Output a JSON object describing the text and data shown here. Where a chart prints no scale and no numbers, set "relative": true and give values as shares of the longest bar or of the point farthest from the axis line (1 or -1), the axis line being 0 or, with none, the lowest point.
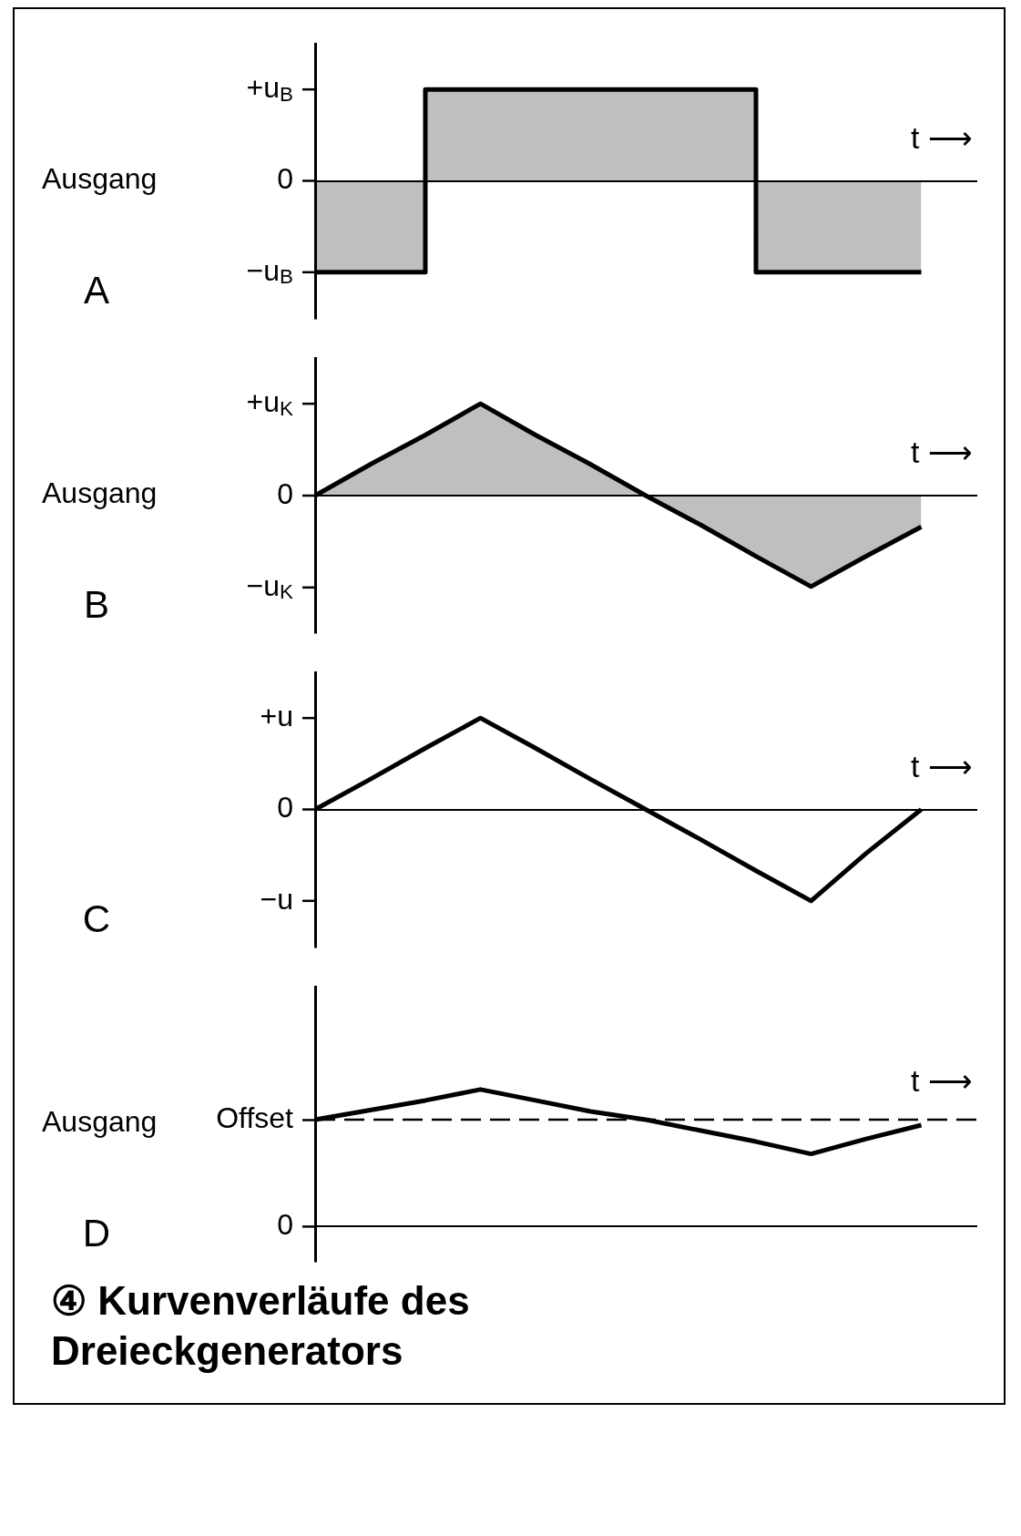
{
  "chart_data": [
    {
      "type": "step",
      "relative": true,
      "ylabel": "Ausgang",
      "xlabel": "t ⟶",
      "tick_labels": false,
      "annotations": [
        "A",
        "+u$_{B}$",
        "0",
        "−u$_{B}$"
      ],
      "categories": [
        null,
        null,
        null,
        null,
        null,
        null,
        null,
        null,
        null,
        null,
        null,
        null,
        null
      ],
      "series": [
        {
          "color": "#000000",
          "values": [
            -1,
            -1,
            -1,
            1,
            1,
            1,
            1,
            1,
            1,
            -1,
            -1,
            -1,
            null
          ]
        }
      ]
    },
    {
      "type": "area",
      "relative": true,
      "ylabel": "Ausgang",
      "xlabel": "t ⟶",
      "tick_labels": false,
      "annotations": [
        "B",
        "+u$_{K}$",
        "0",
        "−u$_{K}$"
      ],
      "categories": [
        null,
        null,
        null,
        null,
        null,
        null,
        null,
        null,
        null,
        null,
        null,
        null,
        null
      ],
      "series": [
        {
          "color": "#000000",
          "values": [
            0,
            0.34,
            0.66,
            1,
            0.66,
            0.34,
            0,
            -0.32,
            -0.66,
            -0.99,
            -0.66,
            -0.34,
            null
          ]
        }
      ]
    },
    {
      "type": "line",
      "relative": true,
      "xlabel": "t ⟶",
      "tick_labels": false,
      "annotations": [
        "C",
        "+u",
        "0",
        "−u"
      ],
      "categories": [
        null,
        null,
        null,
        null,
        null,
        null,
        null,
        null,
        null,
        null,
        null,
        null,
        null
      ],
      "series": [
        {
          "color": "#000000",
          "values": [
            0,
            0.33,
            0.67,
            1,
            0.67,
            0.33,
            0,
            -0.33,
            -0.67,
            -1,
            -0.48,
            0,
            null
          ]
        }
      ]
    },
    {
      "type": "line",
      "relative": true,
      "title": "④ Kurvenverläufe des Dreieckgenerators",
      "ylabel": "Ausgang",
      "xlabel": "t ⟶",
      "tick_labels": false,
      "annotations": [
        "D",
        "Offset",
        "0"
      ],
      "ref_lines": [
        {
          "axis": "y",
          "value": 0.78,
          "line_style": "dashed"
        }
      ],
      "categories": [
        null,
        null,
        null,
        null,
        null,
        null,
        null,
        null,
        null,
        null,
        null,
        null,
        null
      ],
      "series": [
        {
          "color": "#000000",
          "values": [
            0.78,
            0.85,
            0.92,
            1,
            0.92,
            0.84,
            0.78,
            0.7,
            0.62,
            0.53,
            0.64,
            0.74,
            null
          ]
        }
      ]
    }
  ]
}
